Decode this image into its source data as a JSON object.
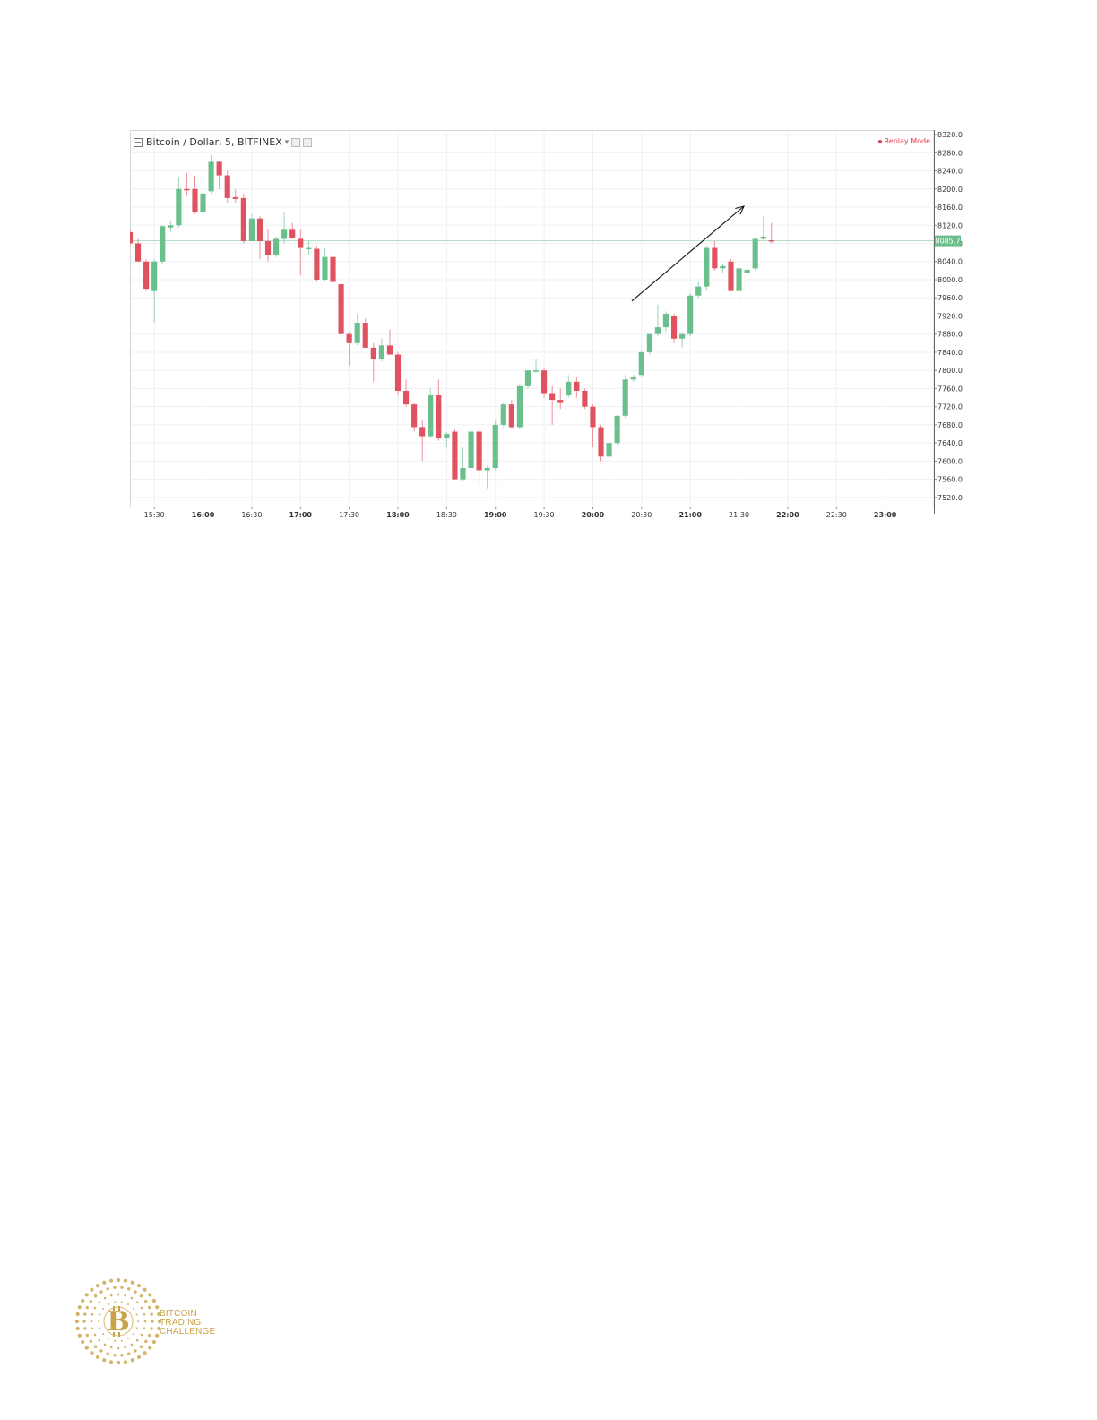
{
  "chart_data": {
    "type": "candlestick",
    "title": "Bitcoin / Dollar, 5, BITFINEX",
    "badge": "Replay Mode",
    "ylim": [
      7500,
      8330
    ],
    "y_ticks": [
      7520,
      7560,
      7600,
      7640,
      7680,
      7720,
      7760,
      7800,
      7840,
      7880,
      7920,
      7960,
      8000,
      8040,
      8080,
      8120,
      8160,
      8200,
      8240,
      8280,
      8320
    ],
    "x_ticks": [
      {
        "label": "15:30",
        "time": 930,
        "bold": false
      },
      {
        "label": "16:00",
        "time": 960,
        "bold": true
      },
      {
        "label": "16:30",
        "time": 990,
        "bold": false
      },
      {
        "label": "17:00",
        "time": 1020,
        "bold": true
      },
      {
        "label": "17:30",
        "time": 1050,
        "bold": false
      },
      {
        "label": "18:00",
        "time": 1080,
        "bold": true
      },
      {
        "label": "18:30",
        "time": 1110,
        "bold": false
      },
      {
        "label": "19:00",
        "time": 1140,
        "bold": true
      },
      {
        "label": "19:30",
        "time": 1170,
        "bold": false
      },
      {
        "label": "20:00",
        "time": 1200,
        "bold": true
      },
      {
        "label": "20:30",
        "time": 1230,
        "bold": false
      },
      {
        "label": "21:00",
        "time": 1260,
        "bold": true
      },
      {
        "label": "21:30",
        "time": 1290,
        "bold": false
      },
      {
        "label": "22:00",
        "time": 1320,
        "bold": true
      },
      {
        "label": "22:30",
        "time": 1350,
        "bold": false
      },
      {
        "label": "23:00",
        "time": 1380,
        "bold": true
      }
    ],
    "xlim": [
      915,
      1410
    ],
    "time_unit": "minutes of day",
    "last_price": 8085.7,
    "last_price_label": "8085.7",
    "candles": [
      {
        "t": 915,
        "o": 8105,
        "h": 8110,
        "l": 8075,
        "c": 8080
      },
      {
        "t": 920,
        "o": 8080,
        "h": 8090,
        "l": 8040,
        "c": 8040
      },
      {
        "t": 925,
        "o": 8040,
        "h": 8045,
        "l": 7975,
        "c": 7980
      },
      {
        "t": 930,
        "o": 7975,
        "h": 8045,
        "l": 7905,
        "c": 8040
      },
      {
        "t": 935,
        "o": 8040,
        "h": 8120,
        "l": 8035,
        "c": 8118
      },
      {
        "t": 940,
        "o": 8115,
        "h": 8130,
        "l": 8105,
        "c": 8120
      },
      {
        "t": 945,
        "o": 8120,
        "h": 8225,
        "l": 8115,
        "c": 8200
      },
      {
        "t": 950,
        "o": 8200,
        "h": 8235,
        "l": 8185,
        "c": 8198
      },
      {
        "t": 955,
        "o": 8200,
        "h": 8230,
        "l": 8145,
        "c": 8150
      },
      {
        "t": 960,
        "o": 8150,
        "h": 8200,
        "l": 8140,
        "c": 8190
      },
      {
        "t": 965,
        "o": 8195,
        "h": 8275,
        "l": 8190,
        "c": 8260
      },
      {
        "t": 970,
        "o": 8260,
        "h": 8260,
        "l": 8200,
        "c": 8230
      },
      {
        "t": 975,
        "o": 8230,
        "h": 8240,
        "l": 8170,
        "c": 8180
      },
      {
        "t": 980,
        "o": 8182,
        "h": 8200,
        "l": 8170,
        "c": 8178
      },
      {
        "t": 985,
        "o": 8180,
        "h": 8190,
        "l": 8080,
        "c": 8085
      },
      {
        "t": 990,
        "o": 8085,
        "h": 8145,
        "l": 8085,
        "c": 8135
      },
      {
        "t": 995,
        "o": 8135,
        "h": 8140,
        "l": 8045,
        "c": 8085
      },
      {
        "t": 1000,
        "o": 8085,
        "h": 8110,
        "l": 8040,
        "c": 8055
      },
      {
        "t": 1005,
        "o": 8055,
        "h": 8095,
        "l": 8050,
        "c": 8090
      },
      {
        "t": 1010,
        "o": 8090,
        "h": 8150,
        "l": 8080,
        "c": 8110
      },
      {
        "t": 1015,
        "o": 8110,
        "h": 8125,
        "l": 8090,
        "c": 8092
      },
      {
        "t": 1020,
        "o": 8090,
        "h": 8110,
        "l": 8010,
        "c": 8070
      },
      {
        "t": 1025,
        "o": 8068,
        "h": 8085,
        "l": 8055,
        "c": 8070
      },
      {
        "t": 1030,
        "o": 8068,
        "h": 8075,
        "l": 7995,
        "c": 8000
      },
      {
        "t": 1035,
        "o": 8000,
        "h": 8070,
        "l": 7995,
        "c": 8050
      },
      {
        "t": 1040,
        "o": 8050,
        "h": 8055,
        "l": 7995,
        "c": 7995
      },
      {
        "t": 1045,
        "o": 7990,
        "h": 7995,
        "l": 7875,
        "c": 7880
      },
      {
        "t": 1050,
        "o": 7880,
        "h": 7885,
        "l": 7810,
        "c": 7860
      },
      {
        "t": 1055,
        "o": 7860,
        "h": 7925,
        "l": 7855,
        "c": 7905
      },
      {
        "t": 1060,
        "o": 7905,
        "h": 7915,
        "l": 7850,
        "c": 7850
      },
      {
        "t": 1065,
        "o": 7850,
        "h": 7860,
        "l": 7775,
        "c": 7825
      },
      {
        "t": 1070,
        "o": 7825,
        "h": 7870,
        "l": 7820,
        "c": 7855
      },
      {
        "t": 1075,
        "o": 7855,
        "h": 7890,
        "l": 7835,
        "c": 7835
      },
      {
        "t": 1080,
        "o": 7835,
        "h": 7840,
        "l": 7745,
        "c": 7755
      },
      {
        "t": 1085,
        "o": 7755,
        "h": 7780,
        "l": 7720,
        "c": 7725
      },
      {
        "t": 1090,
        "o": 7725,
        "h": 7730,
        "l": 7665,
        "c": 7675
      },
      {
        "t": 1095,
        "o": 7675,
        "h": 7690,
        "l": 7600,
        "c": 7655
      },
      {
        "t": 1100,
        "o": 7655,
        "h": 7760,
        "l": 7650,
        "c": 7745
      },
      {
        "t": 1105,
        "o": 7745,
        "h": 7780,
        "l": 7645,
        "c": 7650
      },
      {
        "t": 1110,
        "o": 7650,
        "h": 7665,
        "l": 7630,
        "c": 7660
      },
      {
        "t": 1115,
        "o": 7665,
        "h": 7670,
        "l": 7560,
        "c": 7560
      },
      {
        "t": 1120,
        "o": 7560,
        "h": 7630,
        "l": 7555,
        "c": 7585
      },
      {
        "t": 1125,
        "o": 7585,
        "h": 7670,
        "l": 7580,
        "c": 7665
      },
      {
        "t": 1130,
        "o": 7665,
        "h": 7670,
        "l": 7550,
        "c": 7580
      },
      {
        "t": 1135,
        "o": 7580,
        "h": 7590,
        "l": 7540,
        "c": 7585
      },
      {
        "t": 1140,
        "o": 7585,
        "h": 7690,
        "l": 7580,
        "c": 7680
      },
      {
        "t": 1145,
        "o": 7680,
        "h": 7730,
        "l": 7675,
        "c": 7725
      },
      {
        "t": 1150,
        "o": 7725,
        "h": 7735,
        "l": 7670,
        "c": 7675
      },
      {
        "t": 1155,
        "o": 7675,
        "h": 7770,
        "l": 7670,
        "c": 7765
      },
      {
        "t": 1160,
        "o": 7765,
        "h": 7800,
        "l": 7760,
        "c": 7800
      },
      {
        "t": 1165,
        "o": 7800,
        "h": 7825,
        "l": 7795,
        "c": 7800
      },
      {
        "t": 1170,
        "o": 7800,
        "h": 7805,
        "l": 7740,
        "c": 7750
      },
      {
        "t": 1175,
        "o": 7750,
        "h": 7765,
        "l": 7680,
        "c": 7735
      },
      {
        "t": 1180,
        "o": 7735,
        "h": 7760,
        "l": 7715,
        "c": 7730
      },
      {
        "t": 1185,
        "o": 7745,
        "h": 7790,
        "l": 7740,
        "c": 7775
      },
      {
        "t": 1190,
        "o": 7775,
        "h": 7785,
        "l": 7740,
        "c": 7755
      },
      {
        "t": 1195,
        "o": 7755,
        "h": 7760,
        "l": 7715,
        "c": 7720
      },
      {
        "t": 1200,
        "o": 7720,
        "h": 7725,
        "l": 7630,
        "c": 7675
      },
      {
        "t": 1205,
        "o": 7675,
        "h": 7680,
        "l": 7600,
        "c": 7610
      },
      {
        "t": 1210,
        "o": 7610,
        "h": 7645,
        "l": 7565,
        "c": 7640
      },
      {
        "t": 1215,
        "o": 7640,
        "h": 7700,
        "l": 7635,
        "c": 7700
      },
      {
        "t": 1220,
        "o": 7700,
        "h": 7790,
        "l": 7695,
        "c": 7780
      },
      {
        "t": 1225,
        "o": 7780,
        "h": 7790,
        "l": 7775,
        "c": 7785
      },
      {
        "t": 1230,
        "o": 7790,
        "h": 7845,
        "l": 7785,
        "c": 7840
      },
      {
        "t": 1235,
        "o": 7840,
        "h": 7880,
        "l": 7835,
        "c": 7880
      },
      {
        "t": 1240,
        "o": 7880,
        "h": 7945,
        "l": 7875,
        "c": 7895
      },
      {
        "t": 1245,
        "o": 7895,
        "h": 7930,
        "l": 7885,
        "c": 7925
      },
      {
        "t": 1250,
        "o": 7920,
        "h": 7925,
        "l": 7860,
        "c": 7870
      },
      {
        "t": 1255,
        "o": 7870,
        "h": 7885,
        "l": 7850,
        "c": 7880
      },
      {
        "t": 1260,
        "o": 7880,
        "h": 7970,
        "l": 7875,
        "c": 7965
      },
      {
        "t": 1265,
        "o": 7965,
        "h": 7995,
        "l": 7960,
        "c": 7985
      },
      {
        "t": 1270,
        "o": 7985,
        "h": 8075,
        "l": 7975,
        "c": 8070
      },
      {
        "t": 1275,
        "o": 8070,
        "h": 8085,
        "l": 8020,
        "c": 8025
      },
      {
        "t": 1280,
        "o": 8025,
        "h": 8035,
        "l": 8015,
        "c": 8030
      },
      {
        "t": 1285,
        "o": 8040,
        "h": 8045,
        "l": 7975,
        "c": 7975
      },
      {
        "t": 1290,
        "o": 7975,
        "h": 8030,
        "l": 7930,
        "c": 8025
      },
      {
        "t": 1295,
        "o": 8015,
        "h": 8040,
        "l": 8005,
        "c": 8022
      },
      {
        "t": 1300,
        "o": 8025,
        "h": 8090,
        "l": 8020,
        "c": 8090
      },
      {
        "t": 1305,
        "o": 8090,
        "h": 8140,
        "l": 8085,
        "c": 8095
      },
      {
        "t": 1310,
        "o": 8087,
        "h": 8125,
        "l": 8080,
        "c": 8085
      }
    ],
    "annotation": {
      "type": "arrow",
      "from": {
        "t": 1224,
        "price": 7953
      },
      "to": {
        "t": 1293,
        "price": 8162
      }
    }
  },
  "logo": {
    "lines": [
      "BITCOIN",
      "TRADING",
      "CHALLENGE"
    ]
  }
}
